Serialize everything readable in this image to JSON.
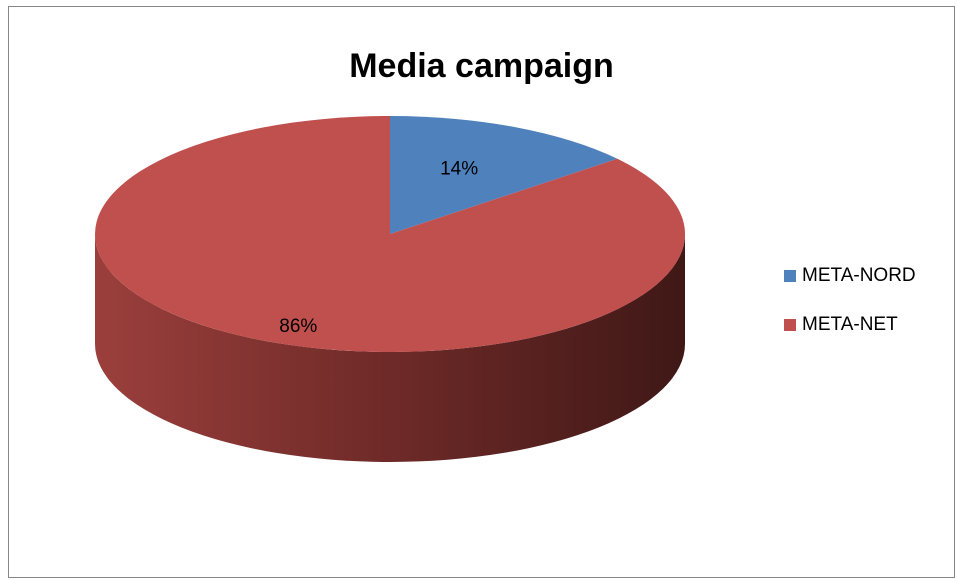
{
  "chart_data": {
    "type": "pie",
    "title": "Media campaign",
    "categories": [
      "META-NORD",
      "META-NET"
    ],
    "values": [
      14,
      86
    ],
    "data_labels": [
      "14%",
      "86%"
    ],
    "colors": [
      "#4f81bd",
      "#c0504d"
    ],
    "style": "3d",
    "legend_position": "right"
  }
}
